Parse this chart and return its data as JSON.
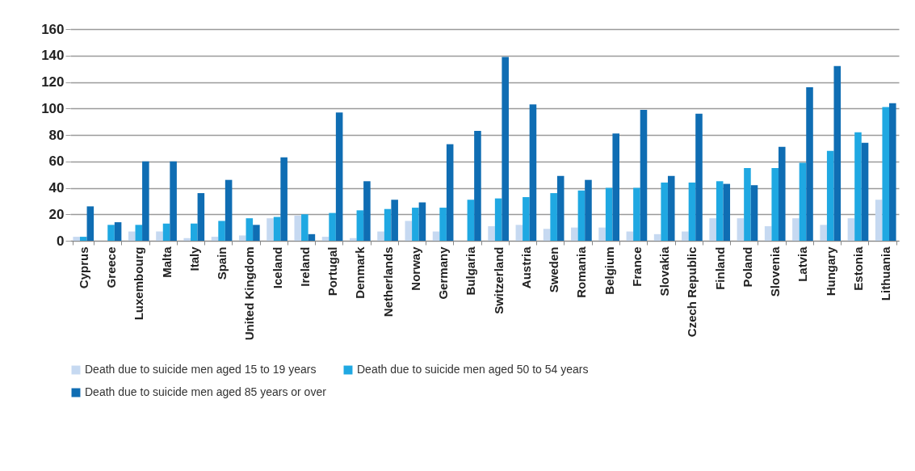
{
  "chart_data": {
    "type": "bar",
    "categories": [
      "Cyprus",
      "Greece",
      "Luxembourg",
      "Malta",
      "Italy",
      "Spain",
      "United Kingdom",
      "Iceland",
      "Ireland",
      "Portugal",
      "Denmark",
      "Netherlands",
      "Norway",
      "Germany",
      "Bulgaria",
      "Switzerland",
      "Austria",
      "Sweden",
      "Romania",
      "Belgium",
      "France",
      "Slovakia",
      "Czech Republic",
      "Finland",
      "Poland",
      "Slovenia",
      "Latvia",
      "Hungary",
      "Estonia",
      "Lithuania"
    ],
    "series": [
      {
        "name": "Death due to suicide men aged 15 to 19 years",
        "color": "#c6d9f1",
        "values": [
          3,
          null,
          7,
          7,
          2,
          3,
          4,
          17,
          19,
          3,
          2,
          7,
          15,
          7,
          null,
          11,
          12,
          9,
          10,
          10,
          7,
          5,
          7,
          17,
          17,
          11,
          17,
          12,
          17,
          31
        ]
      },
      {
        "name": "Death due to suicide men aged 50 to 54 years",
        "color": "#1fa8e2",
        "values": [
          3,
          12,
          12,
          13,
          13,
          15,
          17,
          18,
          20,
          21,
          23,
          24,
          25,
          25,
          31,
          32,
          33,
          36,
          38,
          40,
          40,
          44,
          44,
          45,
          55,
          55,
          59,
          68,
          82,
          101
        ]
      },
      {
        "name": "Death due to suicide men aged 85 years or over",
        "color": "#0f6db3",
        "values": [
          26,
          14,
          60,
          60,
          36,
          46,
          12,
          63,
          5,
          97,
          45,
          31,
          29,
          73,
          83,
          139,
          103,
          49,
          46,
          81,
          99,
          49,
          96,
          43,
          42,
          71,
          116,
          132,
          74,
          104
        ]
      }
    ],
    "ylim": [
      0,
      160
    ],
    "yticks": [
      0,
      20,
      40,
      60,
      80,
      100,
      120,
      140,
      160
    ],
    "grid": "y",
    "legend": "bottom"
  }
}
